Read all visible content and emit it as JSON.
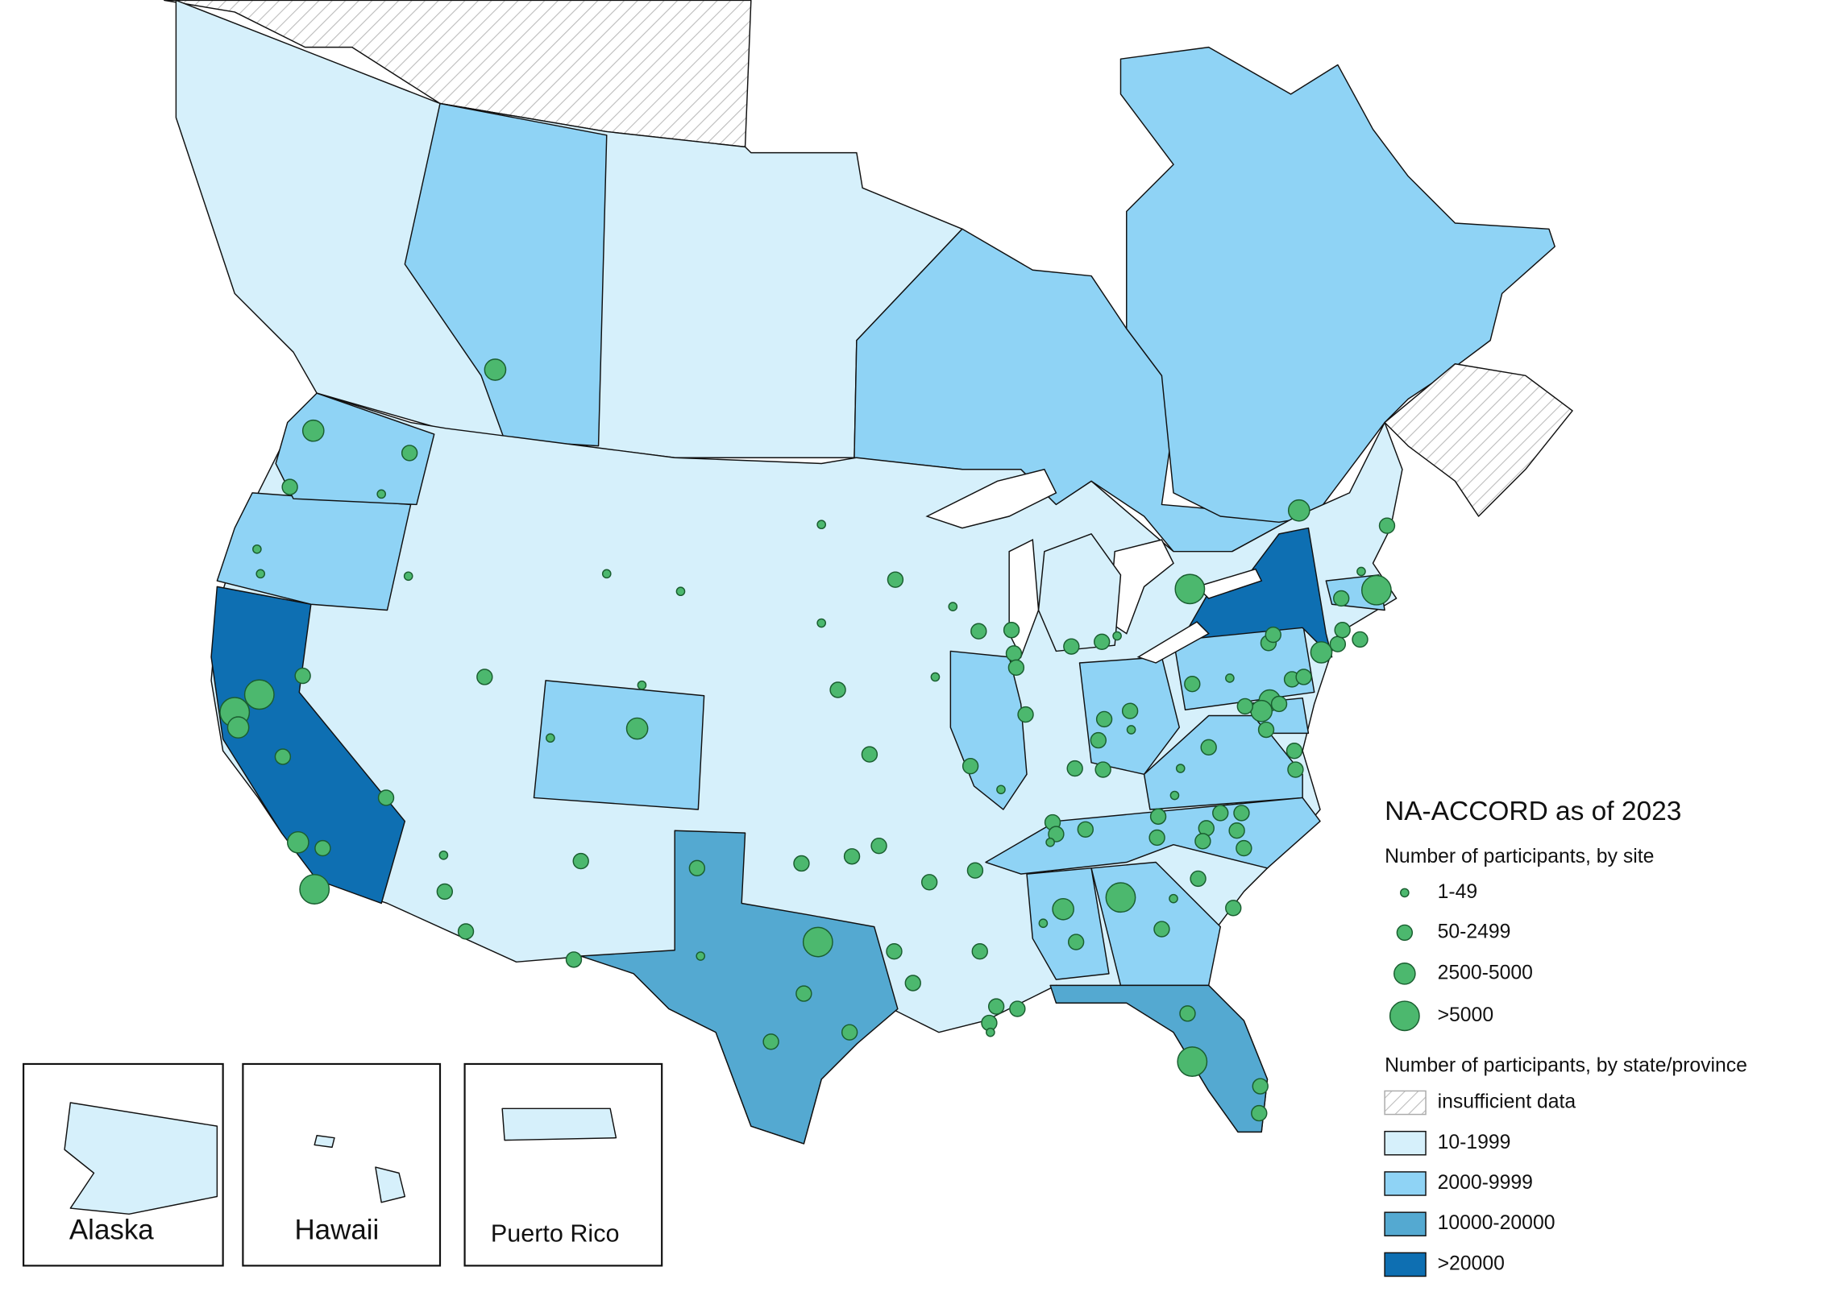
{
  "title": "NA-ACCORD as of 2023",
  "site_legend": {
    "heading": "Number of participants, by site",
    "items": [
      "1-49",
      "50-2499",
      "2500-5000",
      ">5000"
    ],
    "color": "#4cb86e"
  },
  "state_legend": {
    "heading": "Number of participants, by state/province",
    "items": [
      {
        "label": "insufficient data",
        "color": "hatch"
      },
      {
        "label": "10-1999",
        "color": "#d6f0fb"
      },
      {
        "label": "2000-9999",
        "color": "#8fd3f5"
      },
      {
        "label": "10000-20000",
        "color": "#54a9d1"
      },
      {
        "label": ">20000",
        "color": "#0e6fb2"
      }
    ]
  },
  "insets": [
    "Alaska",
    "Hawaii",
    "Puerto Rico"
  ]
}
